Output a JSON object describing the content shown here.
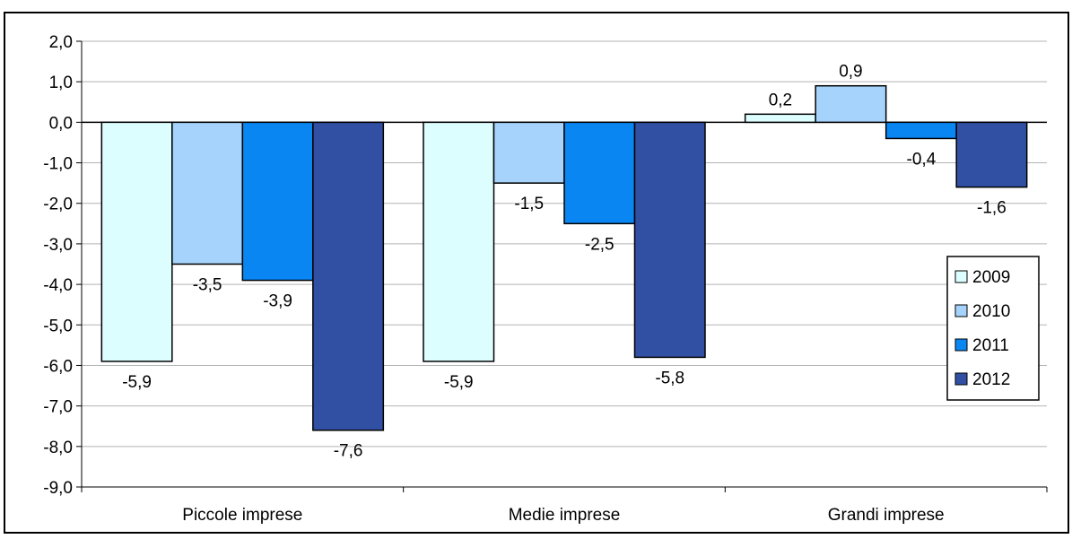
{
  "chart_data": {
    "type": "bar",
    "categories": [
      "Piccole imprese",
      "Medie imprese",
      "Grandi imprese"
    ],
    "series": [
      {
        "name": "2009",
        "values": [
          -5.9,
          -5.9,
          0.2
        ],
        "color": "#ddfefe"
      },
      {
        "name": "2010",
        "values": [
          -3.5,
          -1.5,
          0.9
        ],
        "color": "#a6d3fb"
      },
      {
        "name": "2011",
        "values": [
          -3.9,
          -2.5,
          -0.4
        ],
        "color": "#0a86f3"
      },
      {
        "name": "2012",
        "values": [
          -7.6,
          -5.8,
          -1.6
        ],
        "color": "#3150a3"
      }
    ],
    "data_labels": [
      [
        "-5,9",
        "-5,9",
        "0,2"
      ],
      [
        "-3,5",
        "-1,5",
        "0,9"
      ],
      [
        "-3,9",
        "-2,5",
        "-0,4"
      ],
      [
        "-7,6",
        "-5,8",
        "-1,6"
      ]
    ],
    "y_ticks": [
      2,
      1,
      0,
      -1,
      -2,
      -3,
      -4,
      -5,
      -6,
      -7,
      -8,
      -9
    ],
    "y_tick_labels": [
      "2,0",
      "1,0",
      "0,0",
      "-1,0",
      "-2,0",
      "-3,0",
      "-4,0",
      "-5,0",
      "-6,0",
      "-7,0",
      "-8,0",
      "-9,0"
    ],
    "ylim": [
      -9,
      2
    ],
    "grid": true,
    "legend_position": "right",
    "title": "",
    "xlabel": "",
    "ylabel": ""
  }
}
